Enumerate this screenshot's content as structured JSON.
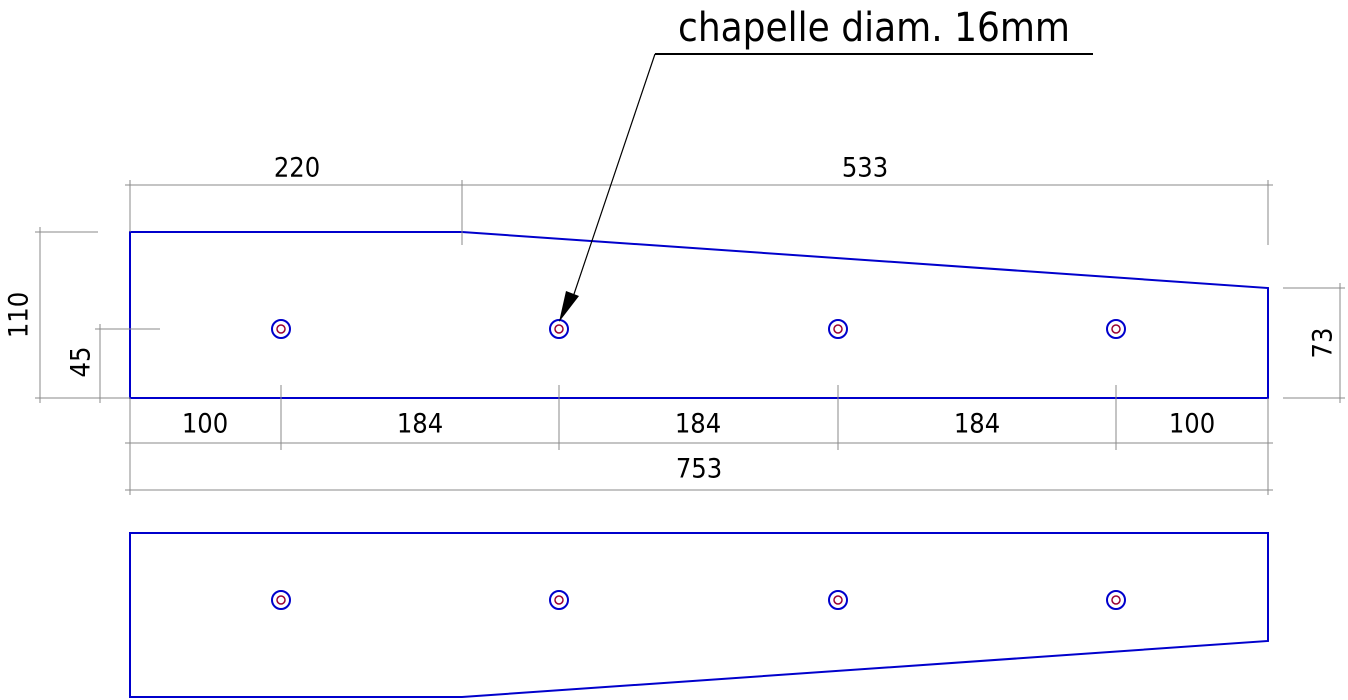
{
  "annotation": "chapelle diam. 16mm",
  "dimensions": {
    "top": [
      220,
      533
    ],
    "left": [
      110,
      45
    ],
    "right": [
      73
    ],
    "bottom": [
      100,
      184,
      184,
      184,
      100
    ],
    "overall": 753
  }
}
